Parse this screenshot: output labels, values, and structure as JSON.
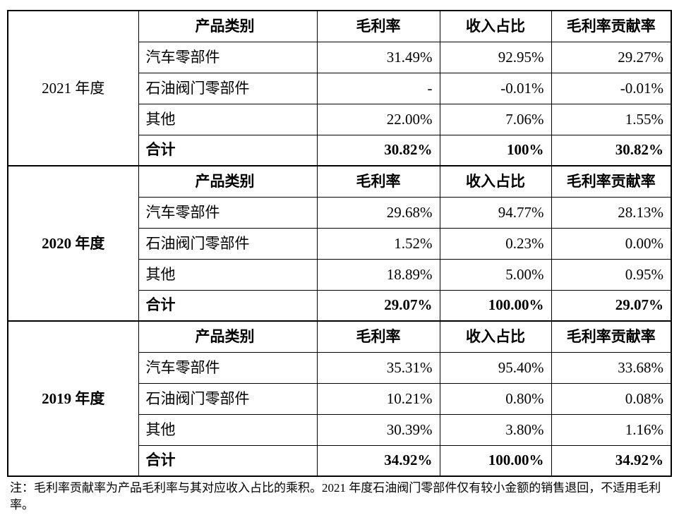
{
  "headers": {
    "category": "产品类别",
    "gross_margin": "毛利率",
    "revenue_share": "收入占比",
    "contribution": "毛利率贡献率"
  },
  "groups": [
    {
      "year": "2021 年度",
      "rows": [
        {
          "name": "汽车零部件",
          "gross_margin": "31.49%",
          "revenue_share": "92.95%",
          "contribution": "29.27%"
        },
        {
          "name": "石油阀门零部件",
          "gross_margin": "-",
          "revenue_share": "-0.01%",
          "contribution": "-0.01%"
        },
        {
          "name": "其他",
          "gross_margin": "22.00%",
          "revenue_share": "7.06%",
          "contribution": "1.55%"
        }
      ],
      "total": {
        "label": "合计",
        "gross_margin": "30.82%",
        "revenue_share": "100%",
        "contribution": "30.82%"
      }
    },
    {
      "year": "2020 年度",
      "rows": [
        {
          "name": "汽车零部件",
          "gross_margin": "29.68%",
          "revenue_share": "94.77%",
          "contribution": "28.13%"
        },
        {
          "name": "石油阀门零部件",
          "gross_margin": "1.52%",
          "revenue_share": "0.23%",
          "contribution": "0.00%"
        },
        {
          "name": "其他",
          "gross_margin": "18.89%",
          "revenue_share": "5.00%",
          "contribution": "0.95%"
        }
      ],
      "total": {
        "label": "合计",
        "gross_margin": "29.07%",
        "revenue_share": "100.00%",
        "contribution": "29.07%"
      }
    },
    {
      "year": "2019 年度",
      "rows": [
        {
          "name": "汽车零部件",
          "gross_margin": "35.31%",
          "revenue_share": "95.40%",
          "contribution": "33.68%"
        },
        {
          "name": "石油阀门零部件",
          "gross_margin": "10.21%",
          "revenue_share": "0.80%",
          "contribution": "0.08%"
        },
        {
          "name": "其他",
          "gross_margin": "30.39%",
          "revenue_share": "3.80%",
          "contribution": "1.16%"
        }
      ],
      "total": {
        "label": "合计",
        "gross_margin": "34.92%",
        "revenue_share": "100.00%",
        "contribution": "34.92%"
      }
    }
  ],
  "note": "注：毛利率贡献率为产品毛利率与其对应收入占比的乘积。2021 年度石油阀门零部件仅有较小金额的销售退回，不适用毛利率。"
}
